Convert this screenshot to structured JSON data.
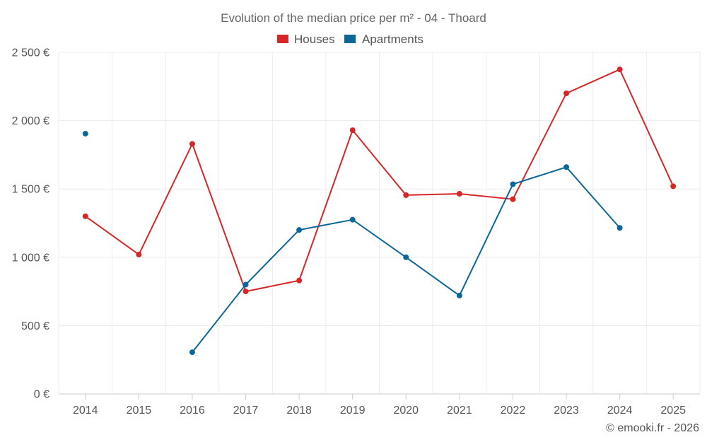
{
  "chart_data": {
    "type": "line",
    "title": "Evolution of the median price per m² - 04 - Thoard",
    "xlabel": "",
    "ylabel": "",
    "x": [
      "2014",
      "2015",
      "2016",
      "2017",
      "2018",
      "2019",
      "2020",
      "2021",
      "2022",
      "2023",
      "2024",
      "2025"
    ],
    "ylim": [
      0,
      2500
    ],
    "yticks": [
      0,
      500,
      1000,
      1500,
      2000,
      2500
    ],
    "ytick_labels": [
      "0 €",
      "500 €",
      "1 000 €",
      "1 500 €",
      "2 000 €",
      "2 500 €"
    ],
    "grid": true,
    "legend_position": "top-center",
    "series": [
      {
        "name": "Houses",
        "color": "#d62728",
        "values": [
          1300,
          1020,
          1830,
          750,
          830,
          1930,
          1455,
          1465,
          1425,
          2200,
          2375,
          1520
        ]
      },
      {
        "name": "Apartments",
        "color": "#0b6699",
        "values": [
          1905,
          null,
          305,
          800,
          1200,
          1275,
          1000,
          720,
          1535,
          1660,
          1215,
          null
        ]
      }
    ]
  },
  "credit": "© emooki.fr - 2026"
}
